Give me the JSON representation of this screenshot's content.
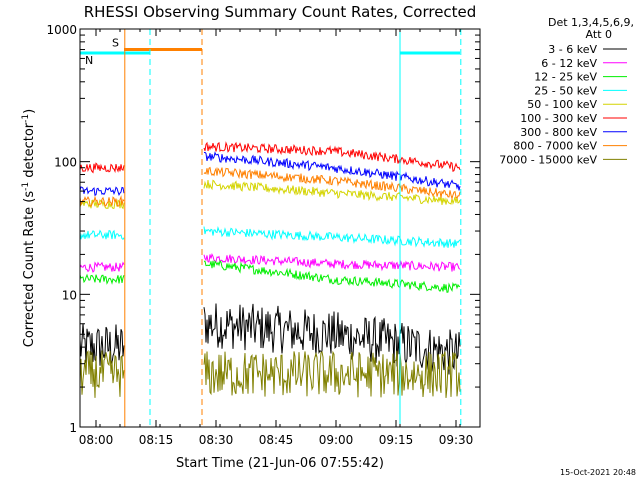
{
  "chart_data": {
    "type": "line",
    "title": "RHESSI Observing Summary Count Rates, Corrected",
    "xlabel": "Start Time (21-Jun-06 07:55:42)",
    "ylabel": "Corrected Count Rate (s⁻¹ detector⁻¹)",
    "ylabel_main": "Corrected Count Rate (s",
    "ylabel_sup1": "-1",
    "ylabel_mid": " detector",
    "ylabel_sup2": "-1",
    "ylabel_end": ")",
    "y_scale": "log",
    "xlim_minutes": [
      -4,
      96
    ],
    "ylim": [
      1,
      1000
    ],
    "x_ticks": [
      {
        "label": "08:00",
        "minute": 0
      },
      {
        "label": "08:15",
        "minute": 15
      },
      {
        "label": "08:30",
        "minute": 30
      },
      {
        "label": "08:45",
        "minute": 45
      },
      {
        "label": "09:00",
        "minute": 60
      },
      {
        "label": "09:15",
        "minute": 75
      },
      {
        "label": "09:30",
        "minute": 90
      }
    ],
    "y_ticks": [
      {
        "label": "1",
        "value": 1
      },
      {
        "label": "10",
        "value": 10
      },
      {
        "label": "100",
        "value": 100
      },
      {
        "label": "1000",
        "value": 1000
      }
    ],
    "legend_header": [
      "Det 1,3,4,5,6,9,",
      "Att 0"
    ],
    "legend_position": "outside-right",
    "series": [
      {
        "name": "3 - 6 keV",
        "color": "#000000"
      },
      {
        "name": "6 - 12 keV",
        "color": "#ff00ff"
      },
      {
        "name": "12 - 25 keV",
        "color": "#00ee00"
      },
      {
        "name": "25 - 50 keV",
        "color": "#00ffff"
      },
      {
        "name": "50 - 100 keV",
        "color": "#d4d400"
      },
      {
        "name": "100 - 300 keV",
        "color": "#ff0000"
      },
      {
        "name": "300 - 800 keV",
        "color": "#0000ff"
      },
      {
        "name": "800 - 7000 keV",
        "color": "#ff8000"
      },
      {
        "name": "7000 - 15000 keV",
        "color": "#808000"
      }
    ],
    "approx_levels": {
      "segment1_minutes": [
        -4,
        7
      ],
      "segment2_minutes": [
        27,
        91
      ],
      "3 - 6 keV": {
        "seg1": 4,
        "seg2_start": 6,
        "seg2_mid": 5,
        "seg2_end": 3.5
      },
      "6 - 12 keV": {
        "seg1": 16,
        "seg2_start": 19,
        "seg2_mid": 17,
        "seg2_end": 16
      },
      "12 - 25 keV": {
        "seg1": 13,
        "seg2_start": 17,
        "seg2_mid": 13,
        "seg2_end": 11
      },
      "25 - 50 keV": {
        "seg1": 28,
        "seg2_start": 30,
        "seg2_mid": 27,
        "seg2_end": 24
      },
      "50 - 100 keV": {
        "seg1": 48,
        "seg2_start": 68,
        "seg2_mid": 58,
        "seg2_end": 50
      },
      "100 - 300 keV": {
        "seg1": 90,
        "seg2_start": 130,
        "seg2_mid": 120,
        "seg2_end": 90
      },
      "300 - 800 keV": {
        "seg1": 60,
        "seg2_start": 110,
        "seg2_mid": 90,
        "seg2_end": 65
      },
      "800 - 7000 keV": {
        "seg1": 50,
        "seg2_start": 85,
        "seg2_mid": 72,
        "seg2_end": 55
      },
      "7000 - 15000 keV": {
        "seg1": 2.5,
        "seg2_start": 2.5,
        "seg2_mid": 2.5,
        "seg2_end": 2.5
      }
    },
    "flags": [
      {
        "label": "S",
        "color": "#ff8000",
        "start_minute": 7,
        "end_minute": 26.5,
        "value": 700
      },
      {
        "label": "N",
        "color": "#00ffff",
        "start_minute": -4,
        "end_minute": 13.5,
        "value": 660
      },
      {
        "label": "",
        "color": "#00ffff",
        "start_minute": 76,
        "end_minute": 91,
        "value": 660
      }
    ],
    "vertical_markers": [
      {
        "minute": 7.2,
        "color": "#ff8000",
        "style": "solid"
      },
      {
        "minute": 13.5,
        "color": "#00ffff",
        "style": "dashed"
      },
      {
        "minute": 26.5,
        "color": "#ff8000",
        "style": "dashed"
      },
      {
        "minute": 76.0,
        "color": "#00ffff",
        "style": "solid"
      },
      {
        "minute": 91.2,
        "color": "#00ffff",
        "style": "dashed"
      }
    ],
    "timestamp": "15-Oct-2021 20:48"
  }
}
